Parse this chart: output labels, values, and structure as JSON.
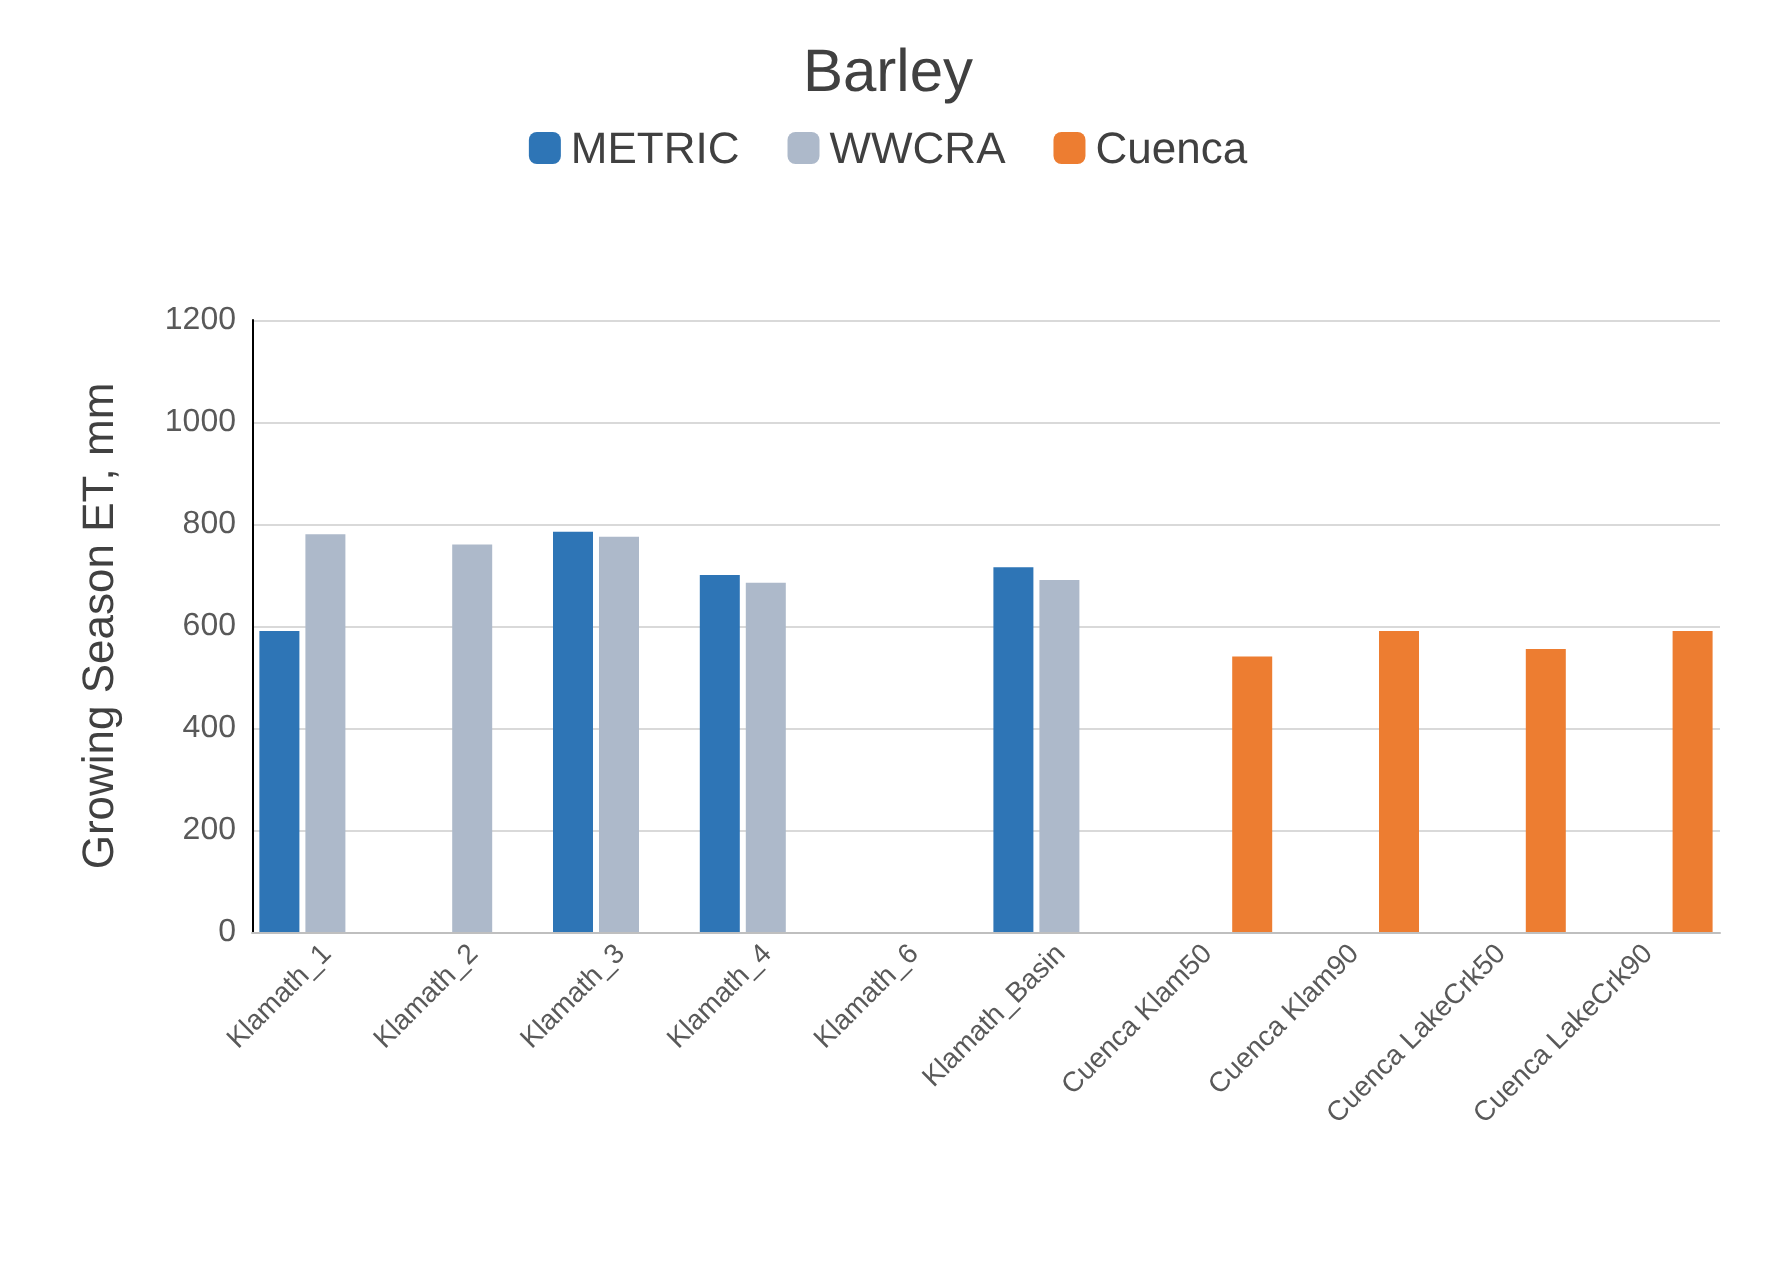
{
  "chart_data": {
    "type": "bar",
    "title": "Barley",
    "ylabel": "Growing Season ET, mm",
    "categories": [
      "Klamath_1",
      "Klamath_2",
      "Klamath_3",
      "Klamath_4",
      "Klamath_6",
      "Klamath_Basin",
      "Cuenca Klam50",
      "Cuenca Klam90",
      "Cuenca LakeCrk50",
      "Cuenca LakeCrk90"
    ],
    "series": [
      {
        "name": "METRIC",
        "color": "#2e75b6",
        "values": [
          590,
          null,
          785,
          700,
          null,
          715,
          null,
          null,
          null,
          null
        ]
      },
      {
        "name": "WWCRA",
        "color": "#adb9ca",
        "values": [
          780,
          760,
          775,
          685,
          null,
          690,
          null,
          null,
          null,
          null
        ]
      },
      {
        "name": "Cuenca",
        "color": "#ed7d31",
        "values": [
          null,
          null,
          null,
          null,
          null,
          null,
          540,
          590,
          555,
          590
        ]
      }
    ],
    "ylim": [
      0,
      1200
    ],
    "yticks": [
      0,
      200,
      400,
      600,
      800,
      1000,
      1200
    ],
    "grid": "y",
    "legend": "top"
  }
}
